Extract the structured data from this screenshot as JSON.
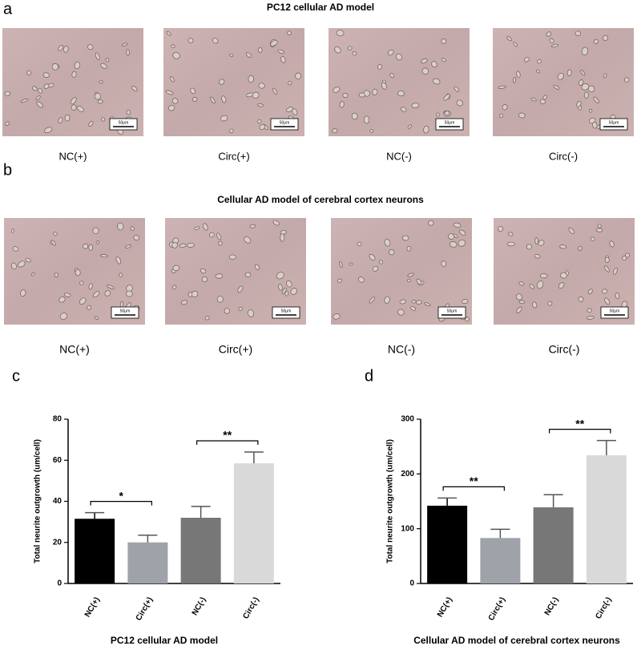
{
  "panel_a": {
    "label": "a",
    "title": "PC12 cellular AD model",
    "images": [
      {
        "caption": "NC(+)",
        "scale_bar": "50μm"
      },
      {
        "caption": "Circ(+)",
        "scale_bar": "50μm"
      },
      {
        "caption": "NC(-)",
        "scale_bar": "50μm"
      },
      {
        "caption": "Circ(-)",
        "scale_bar": "50μm"
      }
    ]
  },
  "panel_b": {
    "label": "b",
    "title": "Cellular AD model of cerebral cortex neurons",
    "images": [
      {
        "caption": "NC(+)",
        "scale_bar": "50μm"
      },
      {
        "caption": "Circ(+)",
        "scale_bar": "50μm"
      },
      {
        "caption": "NC(-)",
        "scale_bar": "50μm"
      },
      {
        "caption": "Circ(-)",
        "scale_bar": "50μm"
      }
    ]
  },
  "chart_data": [
    {
      "type": "bar",
      "panel_label": "c",
      "title": "PC12 cellular AD model",
      "y_label": "Total neurite outgrowth (um/cell)",
      "categories": [
        "NC(+)",
        "Circ(+)",
        "NC(-)",
        "Circ(-)"
      ],
      "values": [
        31.5,
        20,
        32,
        58.5
      ],
      "errors": [
        3,
        3.5,
        5.5,
        5.5
      ],
      "colors": [
        "#000000",
        "#a0a2aa",
        "#777777",
        "#d9d9d9"
      ],
      "ylim": [
        0,
        80
      ],
      "yticks": [
        0,
        20,
        40,
        60,
        80
      ],
      "significance": [
        "*",
        "**"
      ]
    },
    {
      "type": "bar",
      "panel_label": "d",
      "title": "Cellular AD model of cerebral cortex neurons",
      "y_label": "Total neurite outgrowth (um/cell)",
      "categories": [
        "NC(+)",
        "Circ(+)",
        "NC(-)",
        "Circ(-)"
      ],
      "values": [
        142,
        83,
        139,
        234
      ],
      "errors": [
        14,
        16,
        23,
        27
      ],
      "colors": [
        "#000000",
        "#a0a2aa",
        "#777777",
        "#d9d9d9"
      ],
      "ylim": [
        0,
        300
      ],
      "yticks": [
        0,
        100,
        200,
        300
      ],
      "significance": [
        "**",
        "**"
      ]
    }
  ]
}
